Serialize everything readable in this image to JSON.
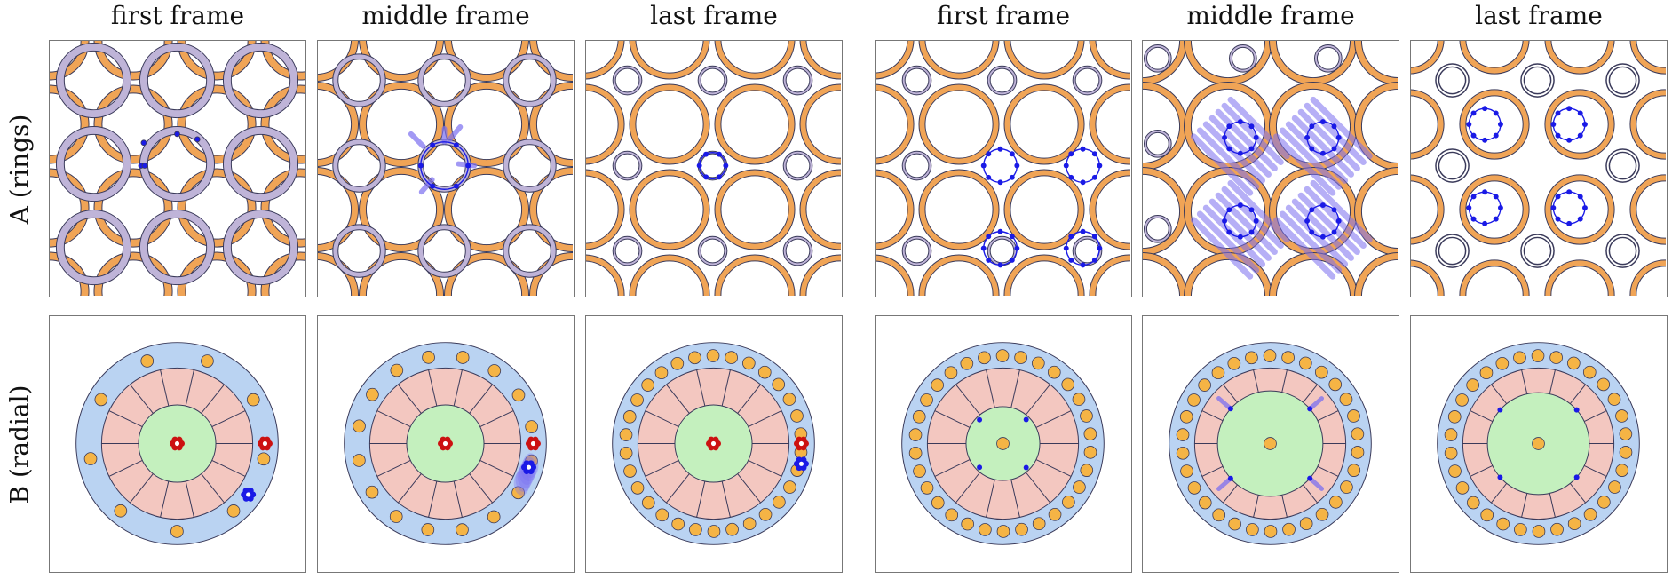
{
  "column_titles": [
    "first frame",
    "middle frame",
    "last frame",
    "first frame",
    "middle frame",
    "last frame"
  ],
  "row_labels": {
    "a": "A (rings)",
    "b": "B (radial)"
  },
  "colors": {
    "orange_ring": "#f0a456",
    "lavender_ring": "#bfb4d8",
    "blue_region": "#bad3f2",
    "pink_region": "#f3c7c0",
    "green_region": "#c4f0be",
    "particle_orange": "#f5b445",
    "red_flower": "#cc1111",
    "blue_dot": "#1a1ae6",
    "trail_blue": "#7b6ff0",
    "stroke": "#3a3a5a"
  }
}
